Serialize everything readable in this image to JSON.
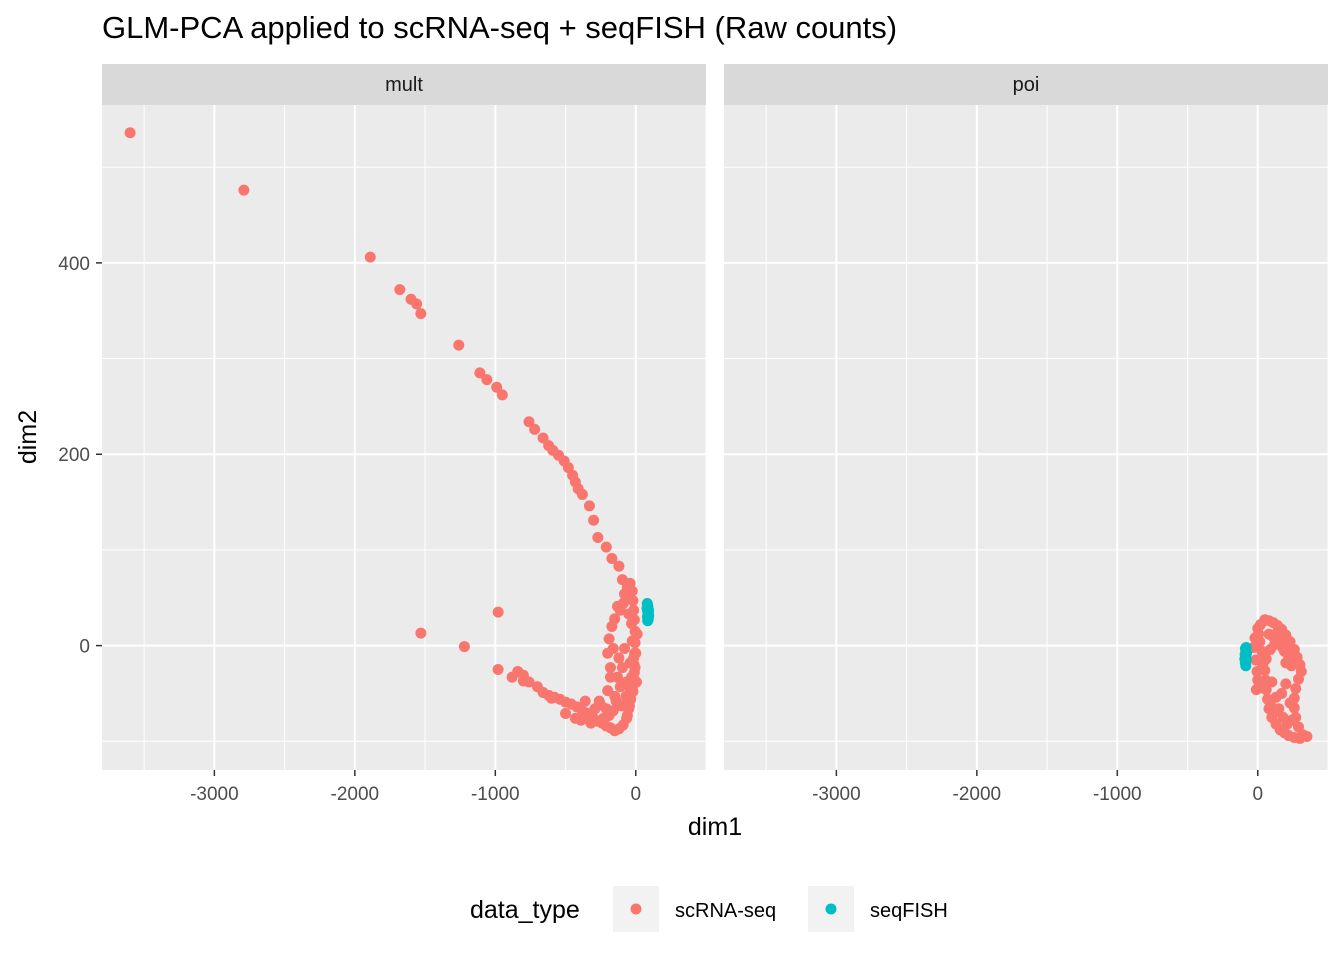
{
  "chart_data": {
    "type": "scatter",
    "title": "GLM-PCA applied to scRNA-seq + seqFISH (Raw counts)",
    "xlabel": "dim1",
    "ylabel": "dim2",
    "xlim": [
      -3800,
      500
    ],
    "ylim": [
      -130,
      565
    ],
    "x_ticks": [
      -3000,
      -2000,
      -1000,
      0
    ],
    "x_tick_labels": [
      "-3000",
      "-2000",
      "-1000",
      "0"
    ],
    "y_ticks": [
      0,
      200,
      400
    ],
    "y_tick_labels": [
      "0",
      "200",
      "400"
    ],
    "grid": true,
    "legend": {
      "title": "data_type",
      "position": "bottom",
      "entries": [
        {
          "label": "scRNA-seq",
          "color": "#F8766D"
        },
        {
          "label": "seqFISH",
          "color": "#00BFC4"
        }
      ]
    },
    "panels": [
      {
        "facet": "mult",
        "series": [
          {
            "name": "scRNA-seq",
            "color": "#F8766D",
            "points": [
              [
                -3600,
                536
              ],
              [
                -2790,
                476
              ],
              [
                -1890,
                406
              ],
              [
                -1680,
                372
              ],
              [
                -1600,
                362
              ],
              [
                -1560,
                357
              ],
              [
                -1530,
                347
              ],
              [
                -1260,
                314
              ],
              [
                -1110,
                285
              ],
              [
                -1060,
                278
              ],
              [
                -990,
                270
              ],
              [
                -950,
                262
              ],
              [
                -760,
                234
              ],
              [
                -720,
                226
              ],
              [
                -660,
                217
              ],
              [
                -620,
                209
              ],
              [
                -590,
                204
              ],
              [
                -550,
                199
              ],
              [
                -510,
                193
              ],
              [
                -480,
                186
              ],
              [
                -450,
                178
              ],
              [
                -430,
                171
              ],
              [
                -410,
                164
              ],
              [
                -380,
                158
              ],
              [
                -330,
                146
              ],
              [
                -300,
                131
              ],
              [
                -270,
                113
              ],
              [
                -210,
                103
              ],
              [
                -170,
                91
              ],
              [
                -120,
                83
              ],
              [
                -95,
                69
              ],
              [
                -80,
                54
              ],
              [
                -60,
                61
              ],
              [
                -40,
                65
              ],
              [
                -25,
                57
              ],
              [
                -20,
                47
              ],
              [
                -15,
                37
              ],
              [
                -10,
                27
              ],
              [
                -5,
                15
              ],
              [
                -5,
                3
              ],
              [
                -8,
                -8
              ],
              [
                -12,
                -20
              ],
              [
                -18,
                -32
              ],
              [
                -25,
                -44
              ],
              [
                -35,
                -56
              ],
              [
                -50,
                -66
              ],
              [
                -65,
                -76
              ],
              [
                -90,
                -83
              ],
              [
                -120,
                -87
              ],
              [
                -150,
                -89
              ],
              [
                -180,
                -86
              ],
              [
                -210,
                -84
              ],
              [
                -240,
                -81
              ],
              [
                -270,
                -79
              ],
              [
                -300,
                -76
              ],
              [
                -340,
                -71
              ],
              [
                -380,
                -68
              ],
              [
                -420,
                -64
              ],
              [
                -460,
                -61
              ],
              [
                -500,
                -59
              ],
              [
                -540,
                -56
              ],
              [
                -580,
                -54
              ],
              [
                -620,
                -52
              ],
              [
                -660,
                -49
              ],
              [
                -700,
                -43
              ],
              [
                -760,
                -38
              ],
              [
                -800,
                -31
              ],
              [
                -840,
                -27
              ],
              [
                -880,
                -33
              ],
              [
                -980,
                -25
              ],
              [
                -1530,
                13
              ],
              [
                -1220,
                -1
              ],
              [
                -980,
                35
              ],
              [
                -800,
                -37
              ],
              [
                -600,
                -55
              ],
              [
                -500,
                -71
              ],
              [
                -430,
                -76
              ],
              [
                -350,
                -72
              ],
              [
                -250,
                -62
              ],
              [
                -200,
                -47
              ],
              [
                -180,
                -23
              ],
              [
                -160,
                -3
              ],
              [
                -150,
                -53
              ],
              [
                -130,
                -33
              ],
              [
                -120,
                -13
              ],
              [
                -110,
                -43
              ],
              [
                -100,
                -63
              ],
              [
                -95,
                -23
              ],
              [
                -80,
                -3
              ],
              [
                -70,
                -53
              ],
              [
                -60,
                -73
              ],
              [
                -50,
                -43
              ],
              [
                -40,
                -18
              ],
              [
                -30,
                -33
              ],
              [
                -25,
                5
              ],
              [
                -20,
                -48
              ],
              [
                -10,
                -28
              ],
              [
                0,
                -8
              ],
              [
                5,
                -38
              ],
              [
                10,
                12
              ],
              [
                -140,
                -58
              ],
              [
                -160,
                -68
              ],
              [
                -190,
                -73
              ],
              [
                -210,
                -66
              ],
              [
                -230,
                -76
              ],
              [
                -260,
                -58
              ],
              [
                -290,
                -66
              ],
              [
                -320,
                -81
              ],
              [
                -360,
                -58
              ],
              [
                -390,
                -78
              ],
              [
                -200,
                -8
              ],
              [
                -190,
                7
              ],
              [
                -180,
                -33
              ],
              [
                -170,
                20
              ],
              [
                -150,
                28
              ],
              [
                -130,
                41
              ],
              [
                -110,
                37
              ],
              [
                -90,
                44
              ],
              [
                -70,
                48
              ],
              [
                -50,
                33
              ],
              [
                -30,
                23
              ],
              [
                -15,
                -13
              ],
              [
                -5,
                -23
              ],
              [
                -45,
                -63
              ],
              [
                -65,
                -38
              ]
            ]
          },
          {
            "name": "seqFISH",
            "color": "#00BFC4",
            "points": [
              [
                82,
                44
              ],
              [
                86,
                41
              ],
              [
                88,
                38
              ],
              [
                84,
                36
              ],
              [
                90,
                34
              ],
              [
                87,
                32
              ],
              [
                83,
                30
              ],
              [
                89,
                28
              ],
              [
                85,
                26
              ],
              [
                91,
                37
              ],
              [
                80,
                39
              ],
              [
                92,
                31
              ]
            ]
          }
        ]
      },
      {
        "facet": "poi",
        "series": [
          {
            "name": "scRNA-seq",
            "color": "#F8766D",
            "points": [
              [
                50,
                27
              ],
              [
                80,
                26
              ],
              [
                110,
                24
              ],
              [
                140,
                21
              ],
              [
                170,
                17
              ],
              [
                200,
                11
              ],
              [
                230,
                4
              ],
              [
                260,
                -4
              ],
              [
                280,
                -12
              ],
              [
                300,
                -20
              ],
              [
                310,
                -27
              ],
              [
                290,
                -35
              ],
              [
                270,
                -45
              ],
              [
                260,
                -55
              ],
              [
                260,
                -65
              ],
              [
                270,
                -75
              ],
              [
                290,
                -85
              ],
              [
                320,
                -93
              ],
              [
                350,
                -95
              ],
              [
                300,
                -97
              ],
              [
                260,
                -96
              ],
              [
                220,
                -94
              ],
              [
                190,
                -91
              ],
              [
                160,
                -88
              ],
              [
                130,
                -82
              ],
              [
                100,
                -75
              ],
              [
                80,
                -66
              ],
              [
                70,
                -56
              ],
              [
                60,
                -46
              ],
              [
                55,
                -36
              ],
              [
                50,
                -26
              ],
              [
                45,
                -16
              ],
              [
                30,
                -6
              ],
              [
                15,
                4
              ],
              [
                5,
                12
              ],
              [
                0,
                18
              ],
              [
                20,
                22
              ],
              [
                -20,
                8
              ],
              [
                -30,
                -2
              ],
              [
                -15,
                -15
              ],
              [
                -5,
                -27
              ],
              [
                0,
                -36
              ],
              [
                -10,
                -46
              ],
              [
                20,
                -44
              ],
              [
                60,
                -14
              ],
              [
                90,
                -4
              ],
              [
                120,
                1
              ],
              [
                150,
                4
              ],
              [
                180,
                -3
              ],
              [
                200,
                -18
              ],
              [
                220,
                -13
              ],
              [
                240,
                -21
              ],
              [
                80,
                12
              ],
              [
                110,
                9
              ],
              [
                140,
                14
              ],
              [
                160,
                6
              ],
              [
                190,
                -6
              ],
              [
                210,
                0
              ],
              [
                100,
                -38
              ],
              [
                130,
                -54
              ],
              [
                150,
                -66
              ],
              [
                170,
                -50
              ],
              [
                200,
                -40
              ],
              [
                230,
                -60
              ],
              [
                120,
                -69
              ],
              [
                90,
                -59
              ],
              [
                180,
                -75
              ],
              [
                210,
                -82
              ],
              [
                240,
                -78
              ],
              [
                35,
                -20
              ]
            ]
          },
          {
            "name": "seqFISH",
            "color": "#00BFC4",
            "points": [
              [
                -88,
                -3
              ],
              [
                -84,
                -6
              ],
              [
                -90,
                -9
              ],
              [
                -86,
                -12
              ],
              [
                -82,
                -15
              ],
              [
                -89,
                -18
              ],
              [
                -85,
                -21
              ],
              [
                -80,
                -8
              ],
              [
                -92,
                -14
              ],
              [
                -83,
                -2
              ]
            ]
          }
        ]
      }
    ]
  }
}
